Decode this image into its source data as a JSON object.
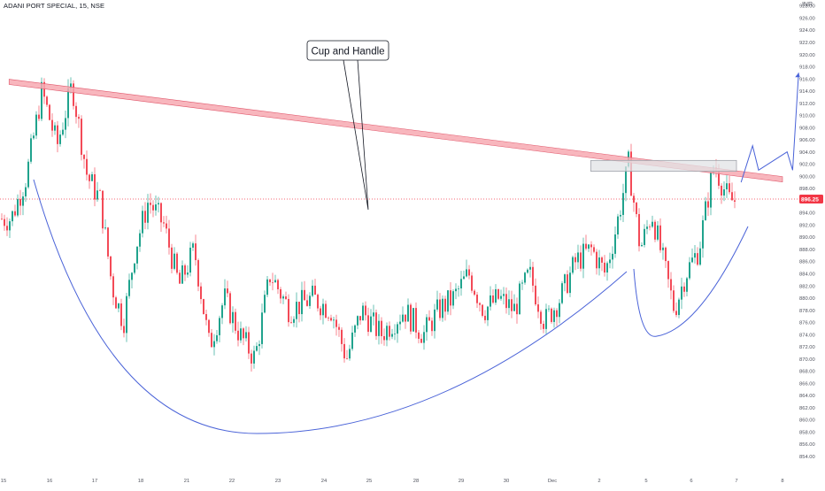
{
  "header": {
    "symbol": "ADANI PORT SPECIAL, 15, NSE",
    "currency": "INR"
  },
  "colors": {
    "up": "#089981",
    "down": "#f23645",
    "trendline": "#f7a9b1",
    "trendline_border": "#e0566a",
    "curve": "#4a63d8",
    "box_fill": "#e2e3e6",
    "box_border": "#9598a1",
    "price_tag": "#f23645",
    "axis_text": "#50535e"
  },
  "chart_data": {
    "type": "candlestick",
    "symbol": "ADANI PORT SPECIAL",
    "interval": "15",
    "exchange": "NSE",
    "ylim": [
      852,
      928
    ],
    "y_ticks": [
      854,
      856,
      858,
      860,
      862,
      864,
      866,
      868,
      870,
      872,
      874,
      876,
      878,
      880,
      882,
      884,
      886,
      888,
      890,
      892,
      894,
      896,
      898,
      900,
      902,
      904,
      906,
      908,
      910,
      912,
      914,
      916,
      918,
      920,
      922,
      924,
      926,
      928
    ],
    "x_ticks": [
      "15",
      "16",
      "17",
      "18",
      "21",
      "22",
      "23",
      "24",
      "25",
      "28",
      "29",
      "30",
      "Dec",
      "2",
      "5",
      "6",
      "7",
      "8"
    ],
    "last_price": "896.25",
    "annotation": "Cup and Handle",
    "trendline": {
      "start": [
        "15",
        915.5
      ],
      "end": [
        "8",
        899.5
      ]
    },
    "resistance_zone": {
      "from": [
        "2",
        900.8
      ],
      "to": [
        "7",
        902.6
      ]
    },
    "grid": false,
    "close_path": [
      [
        "15",
        893
      ],
      [
        "15",
        900
      ],
      [
        "15",
        914
      ],
      [
        "16",
        905
      ],
      [
        "16",
        915
      ],
      [
        "16",
        900
      ],
      [
        "17",
        896
      ],
      [
        "17",
        882
      ],
      [
        "17",
        876
      ],
      [
        "17",
        888
      ],
      [
        "18",
        896
      ],
      [
        "18",
        892
      ],
      [
        "18",
        882
      ],
      [
        "21",
        888
      ],
      [
        "21",
        872
      ],
      [
        "21",
        880
      ],
      [
        "22",
        874
      ],
      [
        "22",
        870
      ],
      [
        "22",
        884
      ],
      [
        "23",
        878
      ],
      [
        "23",
        880
      ],
      [
        "24",
        878
      ],
      [
        "24",
        870
      ],
      [
        "24",
        878
      ],
      [
        "25",
        874
      ],
      [
        "25",
        878
      ],
      [
        "28",
        874
      ],
      [
        "28",
        878
      ],
      [
        "28",
        880
      ],
      [
        "29",
        884
      ],
      [
        "29",
        878
      ],
      [
        "29",
        880
      ],
      [
        "30",
        878
      ],
      [
        "30",
        884
      ],
      [
        "30",
        876
      ],
      [
        "Dec",
        880
      ],
      [
        "Dec",
        886
      ],
      [
        "Dec",
        888
      ],
      [
        "2",
        884
      ],
      [
        "2",
        892
      ],
      [
        "2",
        902
      ],
      [
        "2",
        888
      ],
      [
        "5",
        894
      ],
      [
        "5",
        886
      ],
      [
        "5",
        878
      ],
      [
        "5",
        884
      ],
      [
        "6",
        888
      ],
      [
        "6",
        902
      ],
      [
        "6",
        896
      ],
      [
        "7",
        896
      ],
      [
        "7",
        894
      ],
      [
        "7",
        896
      ]
    ],
    "projection_path": [
      [
        "7",
        899
      ],
      [
        "7",
        905
      ],
      [
        "7",
        901
      ],
      [
        "8",
        904
      ],
      [
        "8",
        901
      ],
      [
        "8",
        917
      ]
    ]
  }
}
